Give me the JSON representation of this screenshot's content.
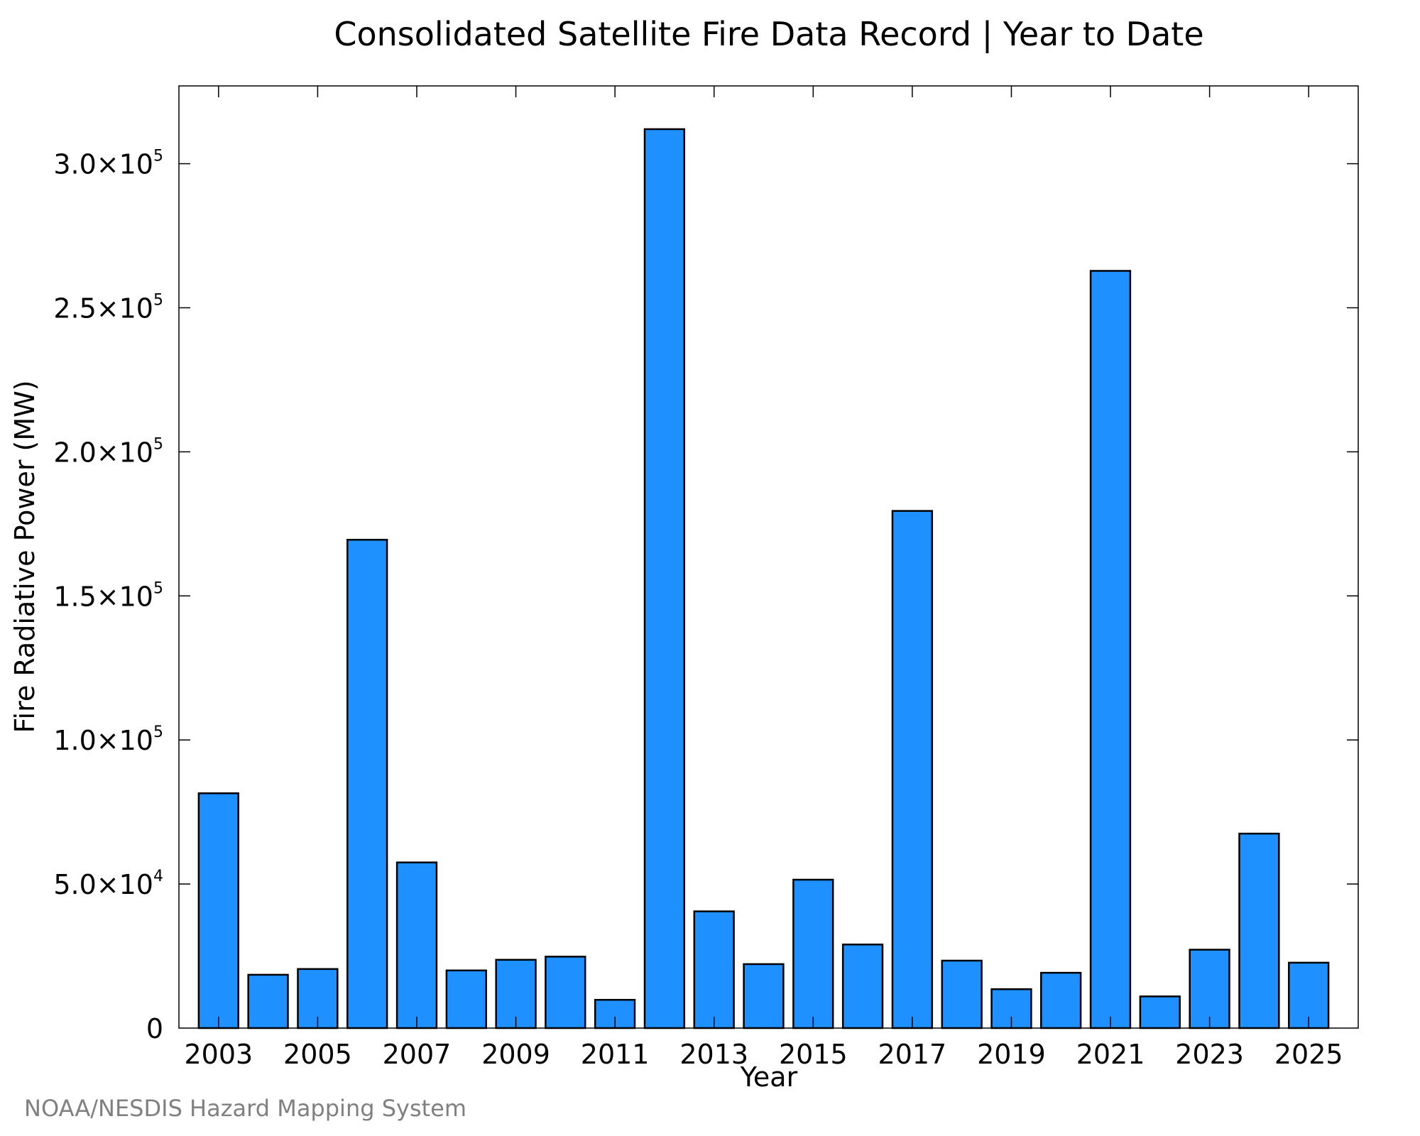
{
  "chart_data": {
    "type": "bar",
    "title": "Consolidated Satellite Fire Data Record | Year to Date",
    "xlabel": "Year",
    "ylabel": "Fire Radiative Power (MW)",
    "credit": "NOAA/NESDIS Hazard Mapping System",
    "categories": [
      2003,
      2004,
      2005,
      2006,
      2007,
      2008,
      2009,
      2010,
      2011,
      2012,
      2013,
      2014,
      2015,
      2016,
      2017,
      2018,
      2019,
      2020,
      2021,
      2022,
      2023,
      2024,
      2025
    ],
    "values": [
      81500,
      18500,
      20500,
      169500,
      57500,
      20000,
      23700,
      24800,
      9800,
      312000,
      40500,
      22200,
      51500,
      29000,
      179500,
      23400,
      13500,
      19200,
      262800,
      11000,
      27200,
      67500,
      22700
    ],
    "xticks": [
      {
        "value": 2003,
        "label": "2003"
      },
      {
        "value": 2005,
        "label": "2005"
      },
      {
        "value": 2007,
        "label": "2007"
      },
      {
        "value": 2009,
        "label": "2009"
      },
      {
        "value": 2011,
        "label": "2011"
      },
      {
        "value": 2013,
        "label": "2013"
      },
      {
        "value": 2015,
        "label": "2015"
      },
      {
        "value": 2017,
        "label": "2017"
      },
      {
        "value": 2019,
        "label": "2019"
      },
      {
        "value": 2021,
        "label": "2021"
      },
      {
        "value": 2023,
        "label": "2023"
      },
      {
        "value": 2025,
        "label": "2025"
      }
    ],
    "yticks": [
      {
        "value": 0,
        "mantissa": "0",
        "exponent": ""
      },
      {
        "value": 50000,
        "mantissa": "5.0×10",
        "exponent": "4"
      },
      {
        "value": 100000,
        "mantissa": "1.0×10",
        "exponent": "5"
      },
      {
        "value": 150000,
        "mantissa": "1.5×10",
        "exponent": "5"
      },
      {
        "value": 200000,
        "mantissa": "2.0×10",
        "exponent": "5"
      },
      {
        "value": 250000,
        "mantissa": "2.5×10",
        "exponent": "5"
      },
      {
        "value": 300000,
        "mantissa": "3.0×10",
        "exponent": "5"
      }
    ],
    "xlim": [
      2002.2,
      2026.0
    ],
    "ylim": [
      0,
      327000
    ],
    "bar_color": "#1e90ff",
    "bar_edge_color": "#000000",
    "grid": false,
    "legend": "none"
  }
}
